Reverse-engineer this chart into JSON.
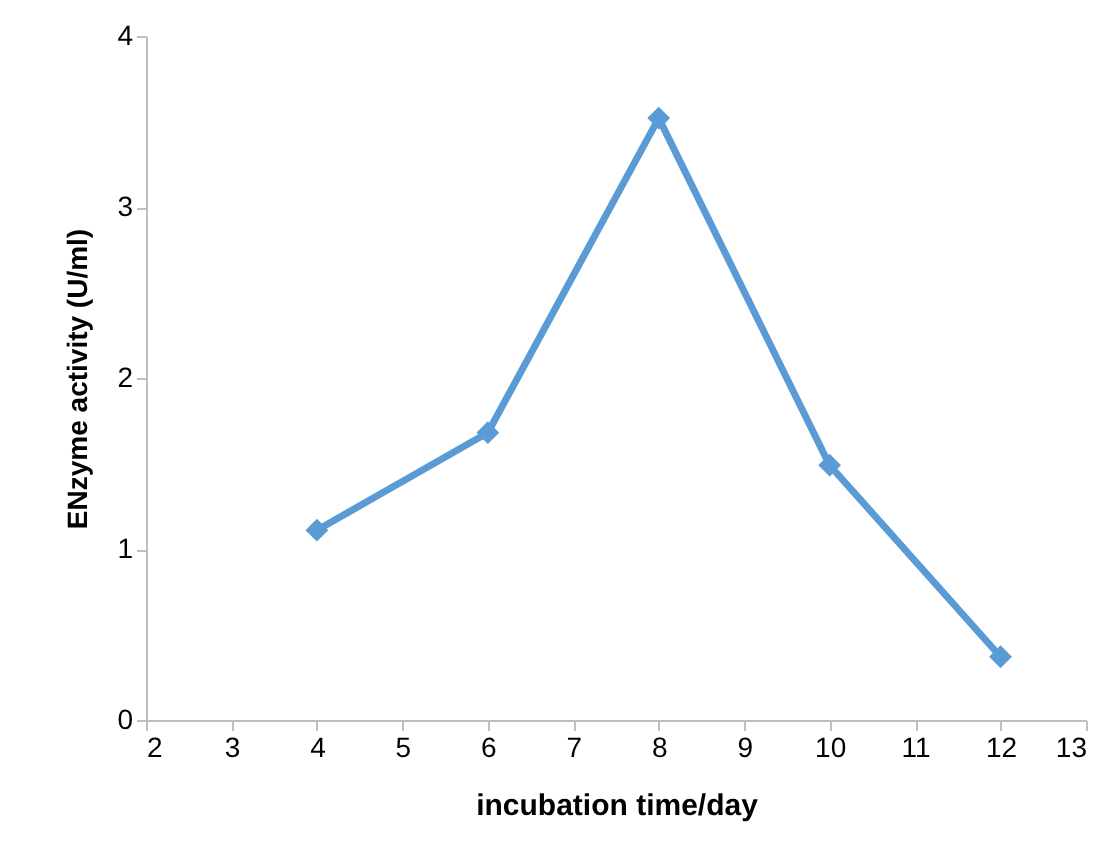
{
  "chart_data": {
    "type": "line",
    "xlabel": "incubation time/day",
    "ylabel": "ENzyme activity (U/ml)",
    "x": [
      4,
      6,
      8,
      10,
      12
    ],
    "series": [
      {
        "color": "#5b9bd5",
        "values": [
          1.11,
          1.68,
          3.52,
          1.49,
          0.37
        ]
      }
    ],
    "xlim": [
      2,
      13
    ],
    "xticks": [
      2,
      3,
      4,
      5,
      6,
      7,
      8,
      9,
      10,
      11,
      12,
      13
    ],
    "ylim": [
      0,
      4
    ],
    "yticks": [
      0,
      1,
      2,
      3,
      4
    ],
    "grid": false,
    "marker": "diamond",
    "line_style": "solid"
  }
}
